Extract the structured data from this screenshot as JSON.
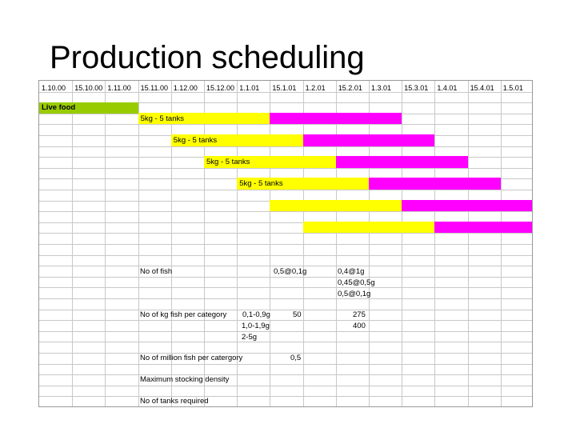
{
  "slide": {
    "title": "Production scheduling"
  },
  "colors": {
    "live_food": "#99cc00",
    "yellow": "#ffff00",
    "magenta": "#ff00ff",
    "grid": "#c8c8c8"
  },
  "timeline": {
    "dates": [
      "1.10.00",
      "15.10.00",
      "1.11.00",
      "15.11.00",
      "1.12.00",
      "15.12.00",
      "1.1.01",
      "15.1.01",
      "1.2.01",
      "15.2.01",
      "1.3.01",
      "15.3.01",
      "1.4.01",
      "15.4.01",
      "1.5.01"
    ]
  },
  "schedule": {
    "live_food_label": "Live food",
    "batch_label": "5kg - 5 tanks",
    "batches": [
      {
        "label": "5kg - 5 tanks",
        "start_column": 3,
        "split_column": 7,
        "end_column": 11
      },
      {
        "label": "5kg - 5 tanks",
        "start_column": 4,
        "split_column": 8,
        "end_column": 12
      },
      {
        "label": "5kg - 5 tanks",
        "start_column": 5,
        "split_column": 9,
        "end_column": 13
      },
      {
        "label": "5kg - 5 tanks",
        "start_column": 6,
        "split_column": 10,
        "end_column": 14
      },
      {
        "label": "",
        "start_column": 7,
        "split_column": 11,
        "end_column": 15
      },
      {
        "label": "",
        "start_column": 8,
        "split_column": 12,
        "end_column": 15
      }
    ]
  },
  "table": {
    "no_of_fish": "No of fish",
    "fish_size_a": "0,5@0,1g",
    "fish_size_b": [
      "0,4@1g",
      "0,45@0,5g",
      "0,5@0,1g"
    ],
    "kg_per_category": "No of kg fish per category",
    "categories": [
      "0,1-0,9g",
      "1,0-1,9g",
      "2-5g"
    ],
    "kg_value_a": "50",
    "kg_values_b": [
      "275",
      "400"
    ],
    "million_per_category": "No of million fish per catergory",
    "million_value": "0,5",
    "max_density": "Maximum stocking density",
    "tanks_required": "No of tanks required"
  }
}
